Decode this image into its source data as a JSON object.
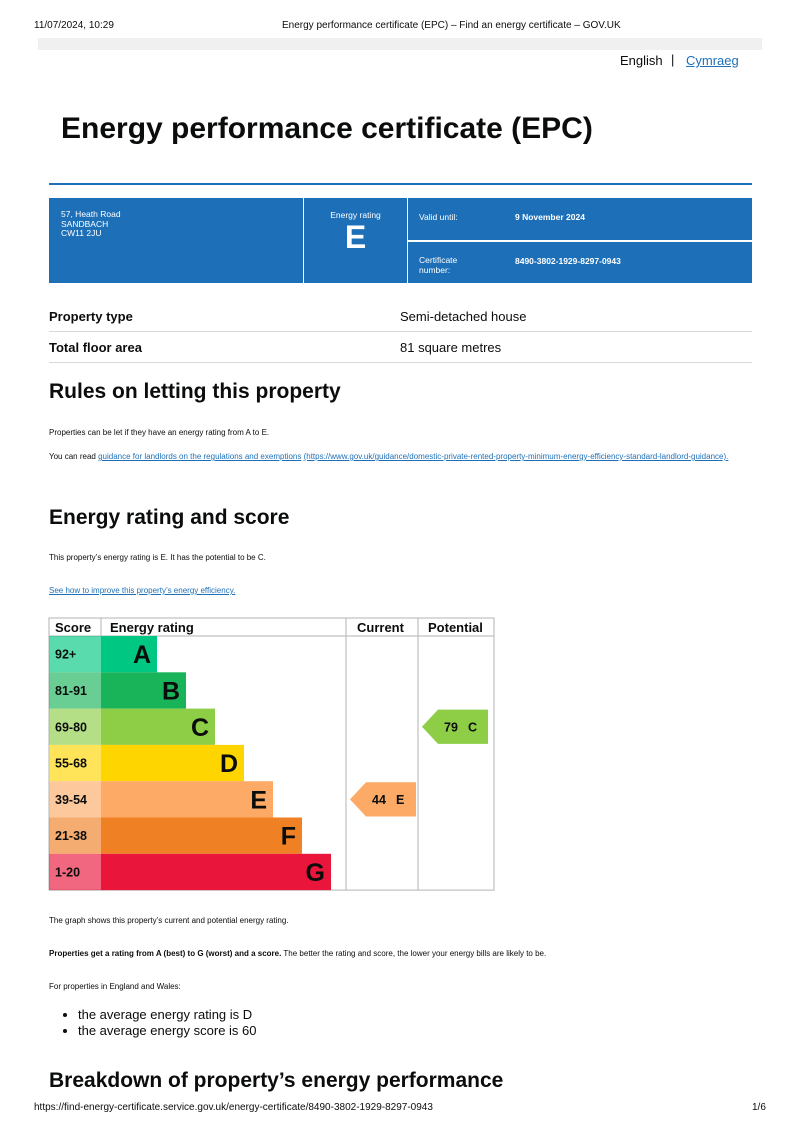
{
  "print_header": {
    "datetime": "11/07/2024, 10:29",
    "page_title": "Energy performance certificate (EPC) – Find an energy certificate – GOV.UK"
  },
  "language": {
    "english": "English",
    "separator": "|",
    "cymraeg": "Cymraeg"
  },
  "title": "Energy performance certificate (EPC)",
  "summary": {
    "address": [
      "57, Heath Road",
      "SANDBACH",
      "CW11 2JU"
    ],
    "rating_label": "Energy rating",
    "rating": "E",
    "valid_until_label": "Valid until:",
    "valid_until": "9 November 2024",
    "certificate_label": "Certificate number:",
    "certificate_number": "8490-3802-1929-8297-0943"
  },
  "property": [
    {
      "label": "Property type",
      "value": "Semi-detached house"
    },
    {
      "label": "Total floor area",
      "value": "81 square metres"
    }
  ],
  "rules": {
    "heading": "Rules on letting this property",
    "para1": "Properties can be let if they have an energy rating from A to E.",
    "para2_prefix": "You can read",
    "link": "guidance for landlords on the regulations and exemptions",
    "url": "(https://www.gov.uk/guidance/domestic-private-rented-property-minimum-energy-efficiency-standard-landlord-guidance)."
  },
  "energy": {
    "heading": "Energy rating and score",
    "para1": "This property’s energy rating is E. It has the potential to be C.",
    "link": "See how to improve this property’s energy efficiency.",
    "chart": {
      "headers": [
        "Score",
        "Energy rating",
        "Current",
        "Potential"
      ],
      "bands": [
        {
          "score": "92+",
          "letter": "A",
          "color": "#00c781"
        },
        {
          "score": "81-91",
          "letter": "B",
          "color": "#19b459"
        },
        {
          "score": "69-80",
          "letter": "C",
          "color": "#8dce46"
        },
        {
          "score": "55-68",
          "letter": "D",
          "color": "#ffd500"
        },
        {
          "score": "39-54",
          "letter": "E",
          "color": "#fcaa65"
        },
        {
          "score": "21-38",
          "letter": "F",
          "color": "#ef8023"
        },
        {
          "score": "1-20",
          "letter": "G",
          "color": "#e9153b"
        }
      ],
      "current": {
        "score": "44",
        "letter": "E"
      },
      "potential": {
        "score": "79",
        "letter": "C"
      }
    },
    "para2": "The graph shows this property’s current and potential energy rating.",
    "para3_bold": "Properties get a rating from A (best) to G (worst) and a score.",
    "para3_rest": "The better the rating and score, the lower your energy bills are likely to be.",
    "para4": "For properties in England and Wales:",
    "bullets": [
      "the average energy rating is D",
      "the average energy score is 60"
    ]
  },
  "breakdown_heading": "Breakdown of property’s energy performance",
  "print_footer": {
    "url": "https://find-energy-certificate.service.gov.uk/energy-certificate/8490-3802-1929-8297-0943",
    "page": "1/6"
  }
}
